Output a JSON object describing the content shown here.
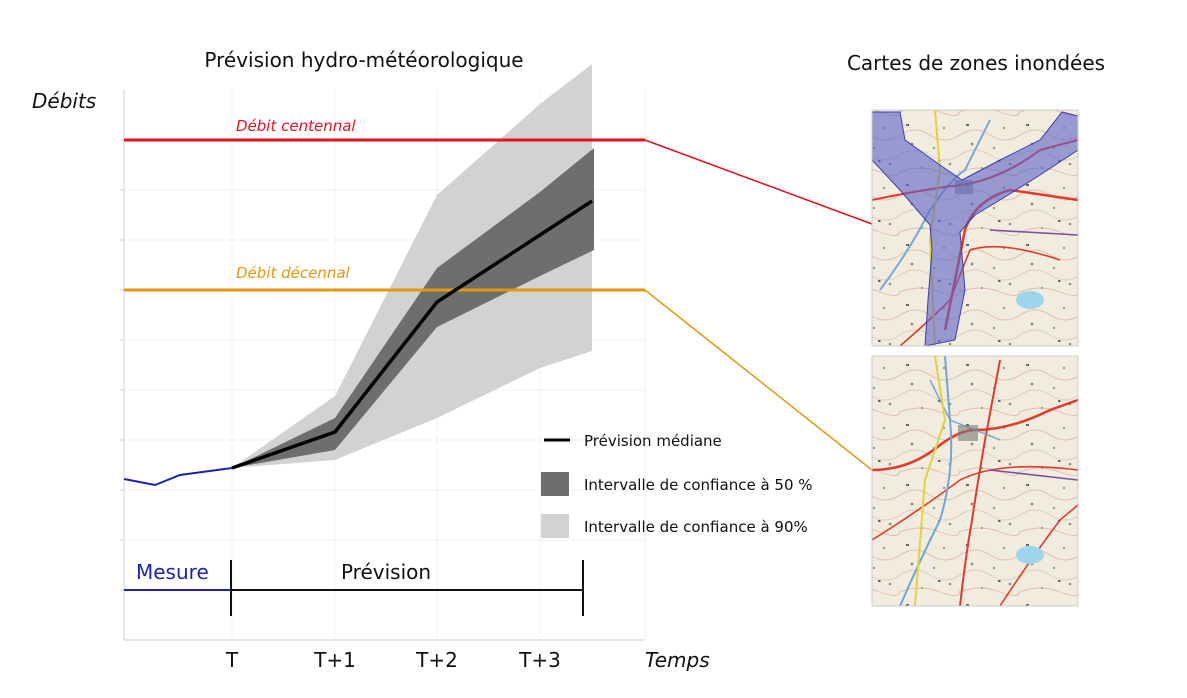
{
  "titles": {
    "forecast": "Prévision hydro-météorologique",
    "maps": "Cartes de zones inondées"
  },
  "axis": {
    "y_label": "Débits",
    "x_label": "Temps",
    "x_ticks": [
      "T",
      "T+1",
      "T+2",
      "T+3"
    ]
  },
  "thresholds": {
    "centennial": {
      "label": "Débit centennal",
      "color": "#e4121b"
    },
    "decennial": {
      "label": "Débit décennal",
      "color": "#e8960c"
    }
  },
  "legend": {
    "median": "Prévision  médiane",
    "ci50": "Intervalle de confiance à 50 %",
    "ci90": "Intervalle de confiance à 90%"
  },
  "periods": {
    "measure": "Mesure",
    "forecast": "Prévision"
  },
  "colors": {
    "measure": "#1c22b4",
    "median": "#000000",
    "ci50": "#6e6e6e",
    "ci90": "#d2d2d2",
    "flood_zone": "#5b63c8"
  },
  "maps": [
    {
      "name": "flood-map-centennial",
      "flooded": true
    },
    {
      "name": "flood-map-decennial",
      "flooded": false
    }
  ]
}
